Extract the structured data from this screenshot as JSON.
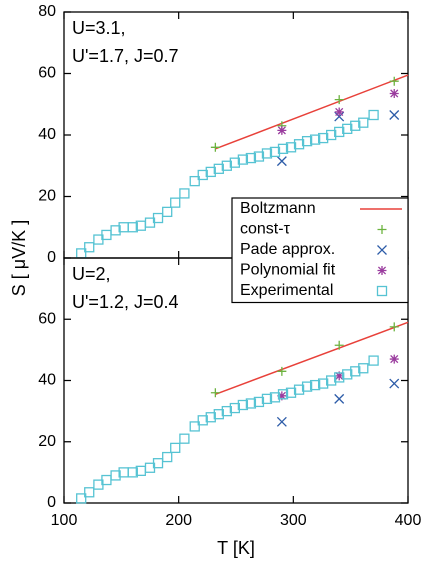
{
  "chart_data": [
    {
      "type": "scatter",
      "ylabel": "S [ μV/K ]",
      "annotations": [
        "U=3.1,",
        "U'=1.7, J=0.7"
      ],
      "xlim": [
        100,
        400
      ],
      "xticks": [
        100,
        200,
        300,
        400
      ],
      "ylim": [
        0,
        80
      ],
      "yticks": [
        0,
        20,
        40,
        60,
        80
      ],
      "series": [
        {
          "name": "Boltzmann",
          "color": "#e8413a",
          "style": "line",
          "x": [
            232,
            400
          ],
          "values": [
            35.5,
            59.5
          ]
        },
        {
          "name": "const-τ",
          "color": "#6cb33f",
          "style": "plus",
          "x": [
            232,
            290,
            340,
            388
          ],
          "values": [
            36,
            43,
            51.5,
            57.5
          ]
        },
        {
          "name": "Pade approx.",
          "color": "#2d5ca8",
          "style": "cross",
          "x": [
            290,
            340,
            388
          ],
          "values": [
            31.5,
            46,
            46.5
          ]
        },
        {
          "name": "Polynomial fit",
          "color": "#9a3c9e",
          "style": "star",
          "x": [
            290,
            340,
            388
          ],
          "values": [
            41.5,
            47.5,
            53.5
          ]
        },
        {
          "name": "Experimental",
          "color": "#56c3d3",
          "style": "square",
          "x": [
            115,
            122,
            130,
            137,
            145,
            152,
            160,
            167,
            175,
            182,
            190,
            197,
            205,
            214,
            221,
            228,
            235,
            242,
            249,
            256,
            263,
            270,
            277,
            284,
            291,
            298,
            305,
            312,
            319,
            326,
            333,
            340,
            347,
            354,
            361,
            370
          ],
          "values": [
            1.5,
            3.5,
            6,
            7.5,
            9,
            10,
            10,
            10.5,
            11.5,
            13,
            15,
            18,
            21,
            25,
            27,
            28,
            29,
            30,
            31,
            32,
            32.5,
            33,
            34,
            34.5,
            35.5,
            36,
            37,
            38,
            38.5,
            39,
            40,
            41,
            42,
            43,
            44,
            46.5
          ]
        }
      ]
    },
    {
      "type": "scatter",
      "xlabel": "T [K]",
      "annotations": [
        "U=2,",
        "U'=1.2, J=0.4"
      ],
      "xlim": [
        100,
        400
      ],
      "xticks": [
        100,
        200,
        300,
        400
      ],
      "ylim": [
        0,
        80
      ],
      "yticks": [
        0,
        20,
        40,
        60
      ],
      "series": [
        {
          "color": "#e8413a",
          "style": "line",
          "x": [
            232,
            400
          ],
          "values": [
            35.5,
            59
          ]
        },
        {
          "color": "#6cb33f",
          "style": "plus",
          "x": [
            232,
            290,
            340,
            388
          ],
          "values": [
            36,
            43,
            51.5,
            57.5
          ]
        },
        {
          "color": "#2d5ca8",
          "style": "cross",
          "x": [
            290,
            340,
            388
          ],
          "values": [
            26.5,
            34,
            39
          ]
        },
        {
          "color": "#9a3c9e",
          "style": "star",
          "x": [
            290,
            340,
            388
          ],
          "values": [
            35,
            41.5,
            47
          ]
        },
        {
          "color": "#56c3d3",
          "style": "square",
          "x": [
            115,
            122,
            130,
            137,
            145,
            152,
            160,
            167,
            175,
            182,
            190,
            197,
            205,
            214,
            221,
            228,
            235,
            242,
            249,
            256,
            263,
            270,
            277,
            284,
            291,
            298,
            305,
            312,
            319,
            326,
            333,
            340,
            347,
            354,
            361,
            370
          ],
          "values": [
            1.5,
            3.5,
            6,
            7.5,
            9,
            10,
            10,
            10.5,
            11.5,
            13,
            15,
            18,
            21,
            25,
            27,
            28,
            29,
            30,
            31,
            32,
            32.5,
            33,
            34,
            34.5,
            35.5,
            36,
            37,
            38,
            38.5,
            39,
            40,
            41,
            42,
            43,
            44,
            46.5
          ]
        }
      ]
    }
  ]
}
